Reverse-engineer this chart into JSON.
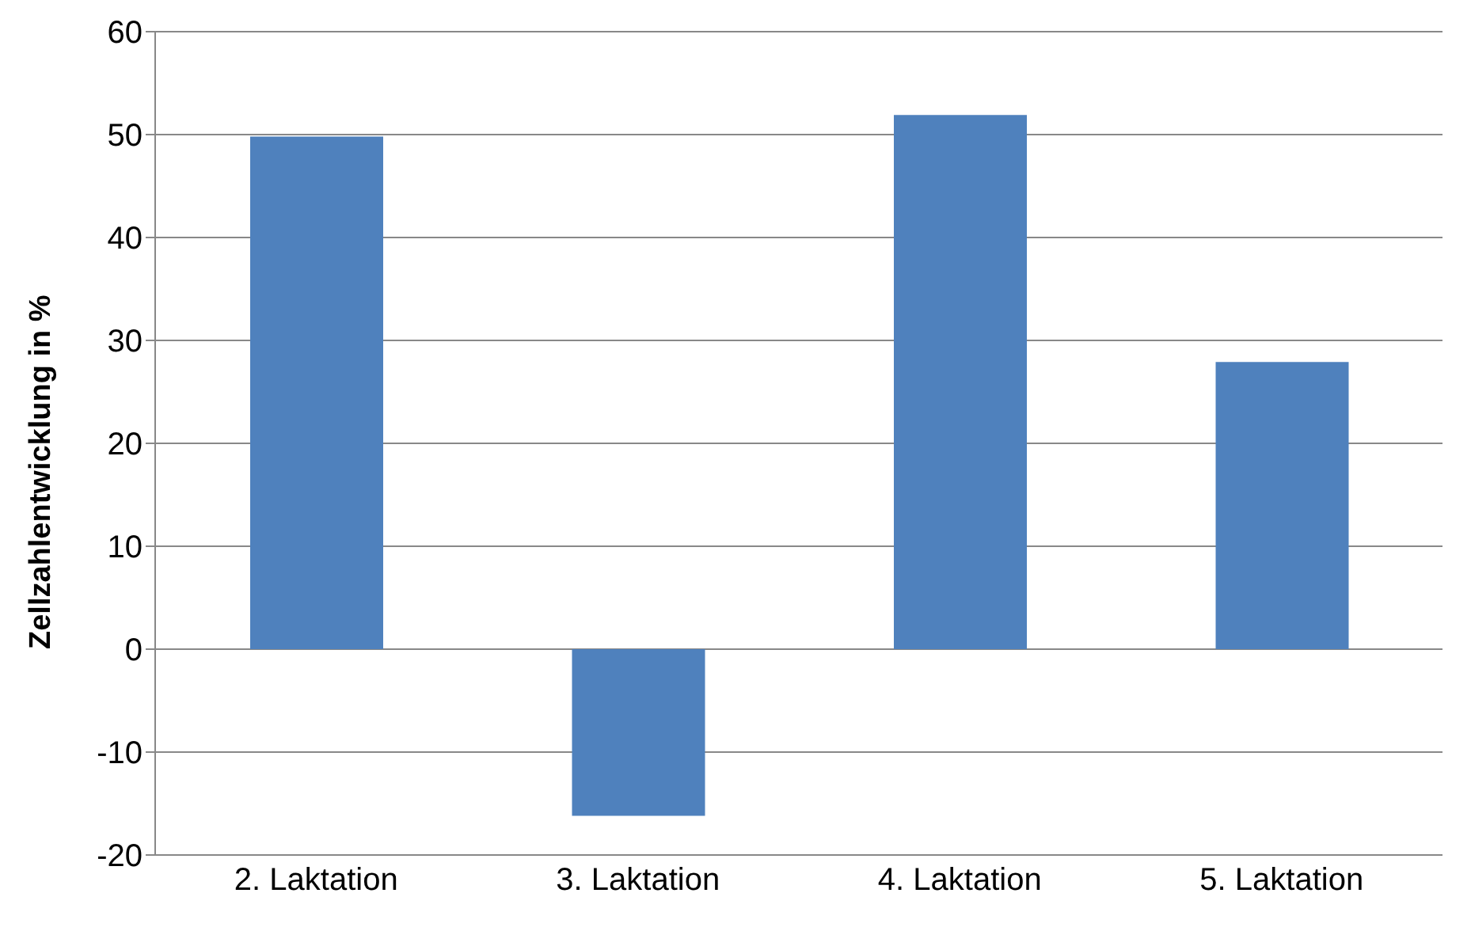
{
  "chart_data": {
    "type": "bar",
    "ylabel": "Zellzahlentwicklung in %",
    "categories": [
      "2. Laktation",
      "3. Laktation",
      "4. Laktation",
      "5. Laktation"
    ],
    "values": [
      49.8,
      -16.2,
      51.9,
      27.9
    ],
    "color": "#4f81bd",
    "ylim": [
      -20,
      60
    ],
    "yticks": [
      -20,
      -10,
      0,
      10,
      20,
      30,
      40,
      50,
      60
    ],
    "grid": "y"
  }
}
